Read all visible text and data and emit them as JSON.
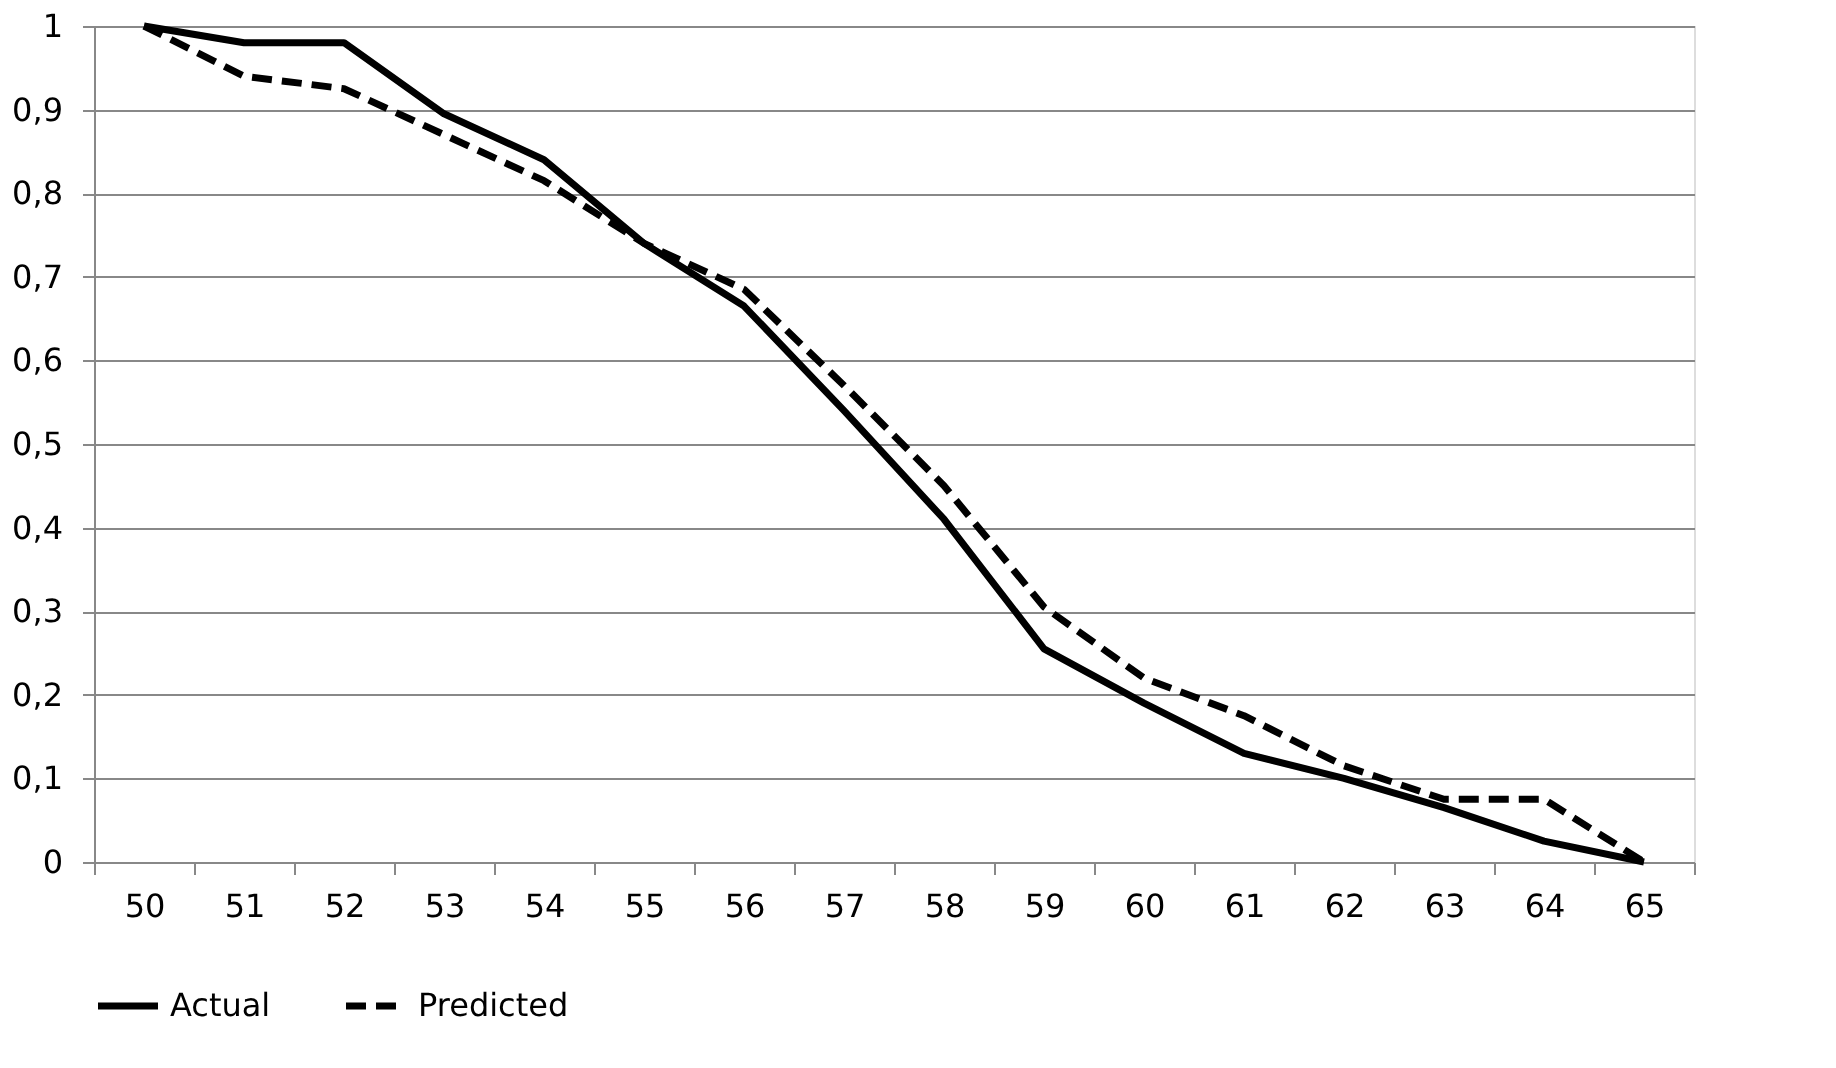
{
  "chart_data": {
    "type": "line",
    "categories": [
      "50",
      "51",
      "52",
      "53",
      "54",
      "55",
      "56",
      "57",
      "58",
      "59",
      "60",
      "61",
      "62",
      "63",
      "64",
      "65"
    ],
    "series": [
      {
        "name": "Actual",
        "color": "#000000",
        "line_style": "solid",
        "values": [
          1.0,
          0.98,
          0.98,
          0.895,
          0.84,
          0.74,
          0.665,
          0.54,
          0.41,
          0.255,
          0.19,
          0.13,
          0.1,
          0.065,
          0.025,
          0.0
        ]
      },
      {
        "name": "Predicted",
        "color": "#000000",
        "line_style": "dashed",
        "values": [
          1.0,
          0.94,
          0.925,
          0.87,
          0.815,
          0.74,
          0.685,
          0.57,
          0.45,
          0.305,
          0.22,
          0.175,
          0.115,
          0.075,
          0.075,
          0.0
        ]
      }
    ],
    "ylim": [
      0,
      1
    ],
    "yticks": [
      0,
      {
        "value": 0.1,
        "label": "0,1"
      },
      {
        "value": 0.2,
        "label": "0,2"
      },
      {
        "value": 0.3,
        "label": "0,3"
      },
      {
        "value": 0.4,
        "label": "0,4"
      },
      {
        "value": 0.5,
        "label": "0,5"
      },
      {
        "value": 0.6,
        "label": "0,6"
      },
      {
        "value": 0.7,
        "label": "0,7"
      },
      {
        "value": 0.8,
        "label": "0,8"
      },
      {
        "value": 0.9,
        "label": "0,9"
      },
      1
    ],
    "grid": "y",
    "legend": "bottom",
    "marker": "none"
  }
}
